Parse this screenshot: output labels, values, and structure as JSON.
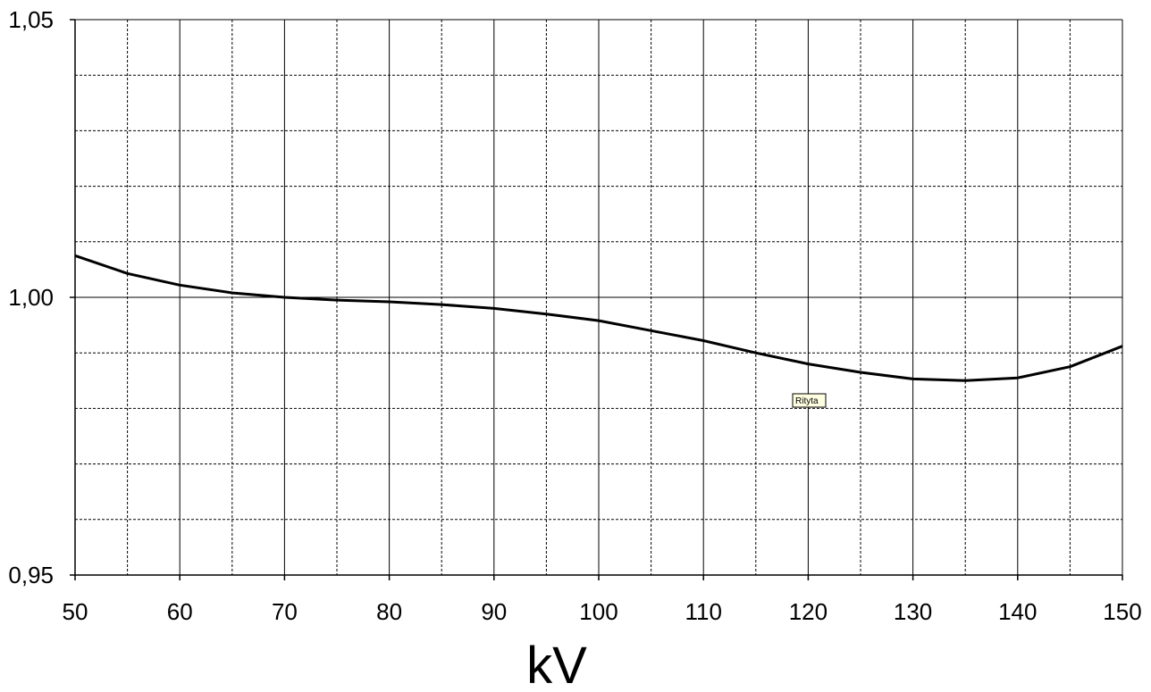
{
  "chart_data": {
    "type": "line",
    "title": "",
    "xlabel": "kV",
    "ylabel": "",
    "xlim": [
      50,
      150
    ],
    "ylim": [
      0.95,
      1.05
    ],
    "x_ticks": [
      50,
      60,
      70,
      80,
      90,
      100,
      110,
      120,
      130,
      140,
      150
    ],
    "x_minor_ticks": [
      55,
      65,
      75,
      85,
      95,
      105,
      115,
      125,
      135,
      145
    ],
    "y_ticks": [
      0.95,
      1.0,
      1.05
    ],
    "y_tick_labels": [
      "0,95",
      "1,00",
      "1,05"
    ],
    "y_minor_ticks": [
      0.96,
      0.97,
      0.98,
      0.99,
      1.01,
      1.02,
      1.03,
      1.04
    ],
    "grid": true,
    "line_color": "#000000",
    "series": [
      {
        "x": [
          50,
          55,
          60,
          65,
          70,
          75,
          80,
          85,
          90,
          95,
          100,
          105,
          110,
          115,
          120,
          125,
          130,
          135,
          140,
          145,
          150
        ],
        "y": [
          1.0075,
          1.0043,
          1.0022,
          1.0008,
          1.0,
          0.9995,
          0.9992,
          0.9987,
          0.998,
          0.997,
          0.9958,
          0.994,
          0.9922,
          0.99,
          0.988,
          0.9865,
          0.9853,
          0.985,
          0.9855,
          0.9875,
          0.9912
        ]
      }
    ],
    "annotation": "Rityta"
  }
}
